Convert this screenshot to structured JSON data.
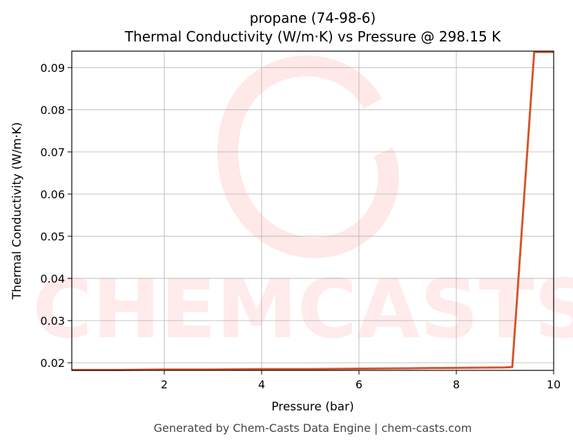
{
  "chart_data": {
    "type": "line",
    "title": "propane (74-98-6)",
    "subtitle": "Thermal Conductivity (W/m·K) vs Pressure @ 298.15 K",
    "x_label": "Pressure (bar)",
    "y_label": "Thermal Conductivity (W/m·K)",
    "watermark": "CHEMCASTS",
    "footer": "Generated by Chem-Casts Data Engine | chem-casts.com",
    "x": [
      0.1,
      1,
      2,
      3,
      4,
      5,
      6,
      7,
      8,
      9,
      9.15,
      9.6,
      10
    ],
    "series": [
      {
        "name": "Thermal Conductivity",
        "color": "#d6532a",
        "values": [
          0.0183,
          0.0183,
          0.0184,
          0.0184,
          0.0185,
          0.0185,
          0.0186,
          0.0187,
          0.0188,
          0.0189,
          0.019,
          0.0937,
          0.0937
        ]
      }
    ],
    "xlim": [
      0.1,
      10
    ],
    "ylim": [
      0.0182,
      0.0939
    ],
    "xticks": [
      2,
      4,
      6,
      8,
      10
    ],
    "yticks": [
      0.02,
      0.03,
      0.04,
      0.05,
      0.06,
      0.07,
      0.08,
      0.09
    ],
    "grid": true
  }
}
